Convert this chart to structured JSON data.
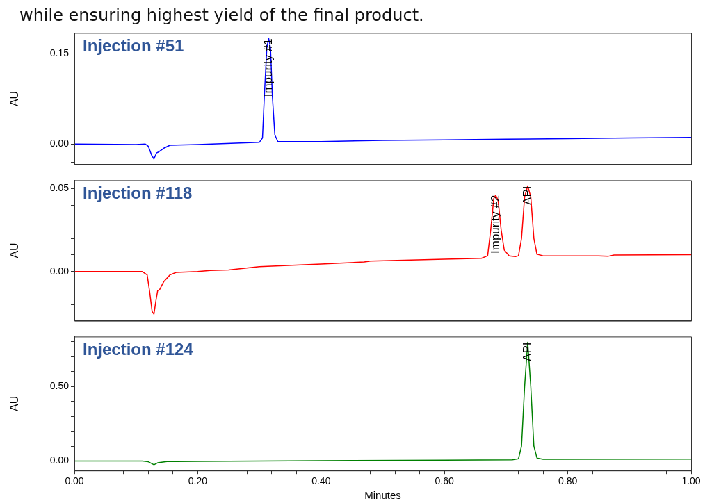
{
  "chart_data": [
    {
      "type": "line",
      "title": "Injection #51",
      "ylabel": "AU",
      "annotations": [
        "while ensuring highest yield of the final product.",
        {
          "text": "Impurity #1",
          "x": 0.315,
          "y": 0.176
        }
      ],
      "x": [
        0,
        0.1,
        0.115,
        0.12,
        0.125,
        0.129,
        0.133,
        0.137,
        0.145,
        0.155,
        0.2,
        0.3,
        0.305,
        0.308,
        0.312,
        0.315,
        0.318,
        0.321,
        0.325,
        0.33,
        0.4,
        0.5,
        0.6,
        0.7,
        0.8,
        0.9,
        1.0
      ],
      "series": [
        {
          "color": "#0000ff",
          "values": [
            0,
            -0.001,
            0,
            -0.004,
            -0.018,
            -0.025,
            -0.015,
            -0.013,
            -0.007,
            -0.002,
            -0.001,
            0.003,
            0.01,
            0.08,
            0.16,
            0.176,
            0.16,
            0.08,
            0.015,
            0.004,
            0.004,
            0.006,
            0.007,
            0.008,
            0.009,
            0.01,
            0.011
          ]
        }
      ],
      "xlim": [
        0,
        1
      ],
      "ylim": [
        -0.034,
        0.185
      ],
      "yticks": [
        {
          "value": -0.03,
          "label": null
        },
        {
          "value": 0,
          "label": "0.00"
        },
        {
          "value": 0.03,
          "label": null
        },
        {
          "value": 0.06,
          "label": null
        },
        {
          "value": 0.09,
          "label": null
        },
        {
          "value": 0.12,
          "label": null
        },
        {
          "value": 0.15,
          "label": "0.15"
        }
      ],
      "tick_labels": "y",
      "grid": false,
      "legend": false,
      "marker": "none",
      "line_style": "solid"
    },
    {
      "type": "line",
      "title": "Injection #118",
      "ylabel": "AU",
      "annotations": [
        {
          "text": "Impurity #2",
          "x": 0.683,
          "y": 0.046
        },
        {
          "text": "API",
          "x": 0.735,
          "y": 0.0516
        }
      ],
      "x": [
        0,
        0.11,
        0.118,
        0.122,
        0.126,
        0.129,
        0.132,
        0.135,
        0.138,
        0.145,
        0.155,
        0.165,
        0.2,
        0.22,
        0.25,
        0.3,
        0.4,
        0.47,
        0.48,
        0.6,
        0.66,
        0.67,
        0.675,
        0.68,
        0.683,
        0.687,
        0.692,
        0.697,
        0.705,
        0.715,
        0.72,
        0.725,
        0.73,
        0.735,
        0.74,
        0.745,
        0.75,
        0.76,
        0.85,
        0.865,
        0.875,
        1.0
      ],
      "series": [
        {
          "color": "#ff0000",
          "values": [
            0,
            0,
            -0.002,
            -0.012,
            -0.024,
            -0.0256,
            -0.018,
            -0.0115,
            -0.011,
            -0.006,
            -0.002,
            -0.0005,
            0,
            0.0007,
            0.001,
            0.003,
            0.0045,
            0.0058,
            0.0063,
            0.0075,
            0.008,
            0.0095,
            0.025,
            0.044,
            0.046,
            0.043,
            0.025,
            0.013,
            0.0095,
            0.009,
            0.0095,
            0.02,
            0.045,
            0.0516,
            0.045,
            0.02,
            0.0105,
            0.0095,
            0.0095,
            0.0092,
            0.01,
            0.0102
          ]
        }
      ],
      "xlim": [
        0,
        1
      ],
      "ylim": [
        -0.0296,
        0.055
      ],
      "yticks": [
        {
          "value": -0.02,
          "label": null
        },
        {
          "value": -0.01,
          "label": null
        },
        {
          "value": 0,
          "label": "0.00"
        },
        {
          "value": 0.01,
          "label": null
        },
        {
          "value": 0.02,
          "label": null
        },
        {
          "value": 0.03,
          "label": null
        },
        {
          "value": 0.04,
          "label": null
        },
        {
          "value": 0.05,
          "label": "0.05"
        }
      ],
      "tick_labels": "y",
      "grid": false,
      "legend": false,
      "marker": "none",
      "line_style": "solid"
    },
    {
      "type": "line",
      "title": "Injection #124",
      "xlabel": "Minutes",
      "ylabel": "AU",
      "annotations": [
        {
          "text": "API",
          "x": 0.735,
          "y": 0.797
        }
      ],
      "x": [
        0,
        0.11,
        0.12,
        0.129,
        0.135,
        0.15,
        0.2,
        0.4,
        0.6,
        0.71,
        0.72,
        0.725,
        0.73,
        0.735,
        0.74,
        0.745,
        0.75,
        0.76,
        1.0
      ],
      "series": [
        {
          "color": "#008000",
          "values": [
            0,
            0,
            -0.005,
            -0.025,
            -0.012,
            -0.004,
            -0.002,
            0.002,
            0.006,
            0.008,
            0.015,
            0.1,
            0.5,
            0.797,
            0.5,
            0.1,
            0.02,
            0.012,
            0.013
          ]
        }
      ],
      "xlim": [
        0,
        1
      ],
      "ylim": [
        -0.064,
        0.835
      ],
      "xticks": [
        {
          "value": 0,
          "label": "0.00"
        },
        {
          "value": 0.04,
          "label": null
        },
        {
          "value": 0.08,
          "label": null
        },
        {
          "value": 0.12,
          "label": null
        },
        {
          "value": 0.16,
          "label": null
        },
        {
          "value": 0.2,
          "label": "0.20"
        },
        {
          "value": 0.24,
          "label": null
        },
        {
          "value": 0.28,
          "label": null
        },
        {
          "value": 0.32,
          "label": null
        },
        {
          "value": 0.36,
          "label": null
        },
        {
          "value": 0.4,
          "label": "0.40"
        },
        {
          "value": 0.44,
          "label": null
        },
        {
          "value": 0.48,
          "label": null
        },
        {
          "value": 0.52,
          "label": null
        },
        {
          "value": 0.56,
          "label": null
        },
        {
          "value": 0.6,
          "label": "0.60"
        },
        {
          "value": 0.64,
          "label": null
        },
        {
          "value": 0.68,
          "label": null
        },
        {
          "value": 0.72,
          "label": null
        },
        {
          "value": 0.76,
          "label": null
        },
        {
          "value": 0.8,
          "label": "0.80"
        },
        {
          "value": 0.84,
          "label": null
        },
        {
          "value": 0.88,
          "label": null
        },
        {
          "value": 0.92,
          "label": null
        },
        {
          "value": 0.96,
          "label": null
        },
        {
          "value": 1.0,
          "label": "1.00"
        }
      ],
      "yticks": [
        {
          "value": 0,
          "label": "0.00"
        },
        {
          "value": 0.1,
          "label": null
        },
        {
          "value": 0.2,
          "label": null
        },
        {
          "value": 0.3,
          "label": null
        },
        {
          "value": 0.4,
          "label": null
        },
        {
          "value": 0.5,
          "label": "0.50"
        },
        {
          "value": 0.6,
          "label": null
        },
        {
          "value": 0.7,
          "label": null
        },
        {
          "value": 0.8,
          "label": null
        }
      ],
      "grid": false,
      "legend": false,
      "marker": "none",
      "line_style": "solid"
    }
  ]
}
